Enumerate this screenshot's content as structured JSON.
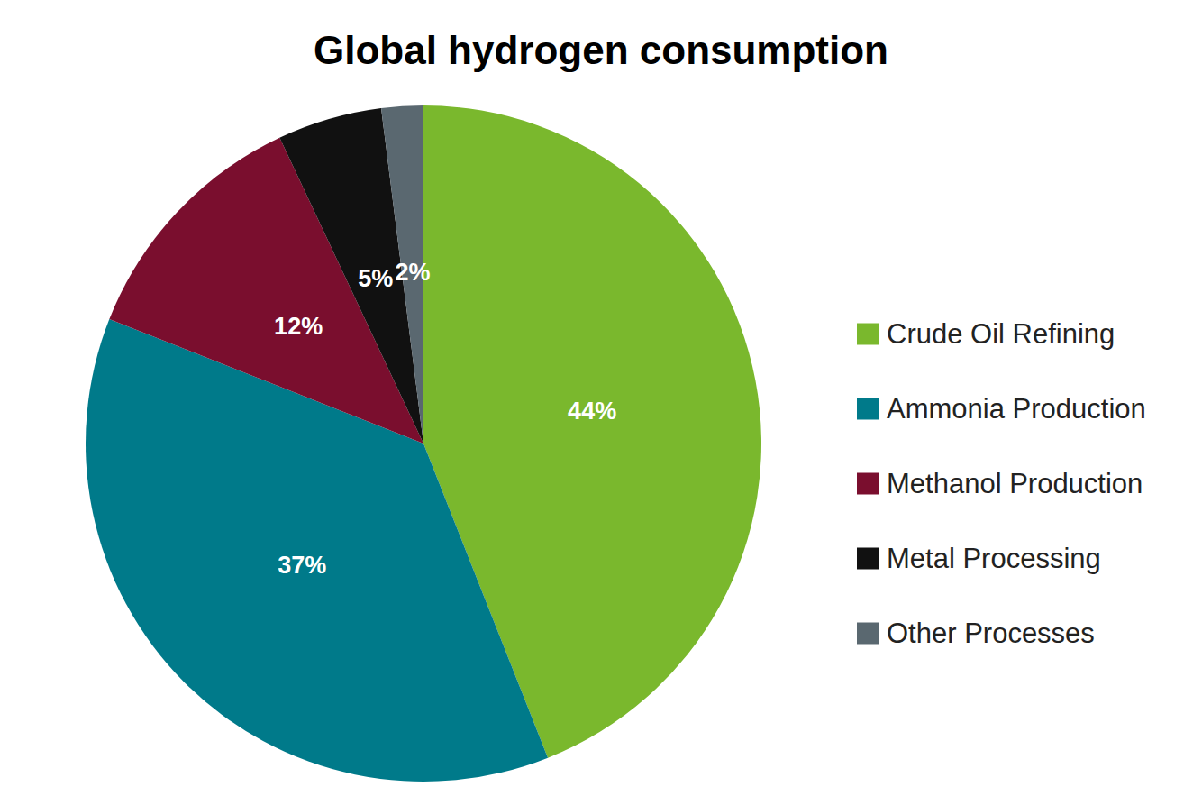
{
  "chart_data": {
    "type": "pie",
    "title": "Global hydrogen consumption",
    "categories": [
      "Crude Oil Refining",
      "Ammonia Production",
      "Methanol Production",
      "Metal Processing",
      "Other Processes"
    ],
    "values": [
      44,
      37,
      12,
      5,
      2
    ],
    "value_labels": [
      "44%",
      "37%",
      "12%",
      "5%",
      "2%"
    ],
    "colors": [
      "#7ab82d",
      "#007a8a",
      "#7a0e2e",
      "#111111",
      "#5a6870"
    ],
    "data_labels": true,
    "legend": "right"
  }
}
